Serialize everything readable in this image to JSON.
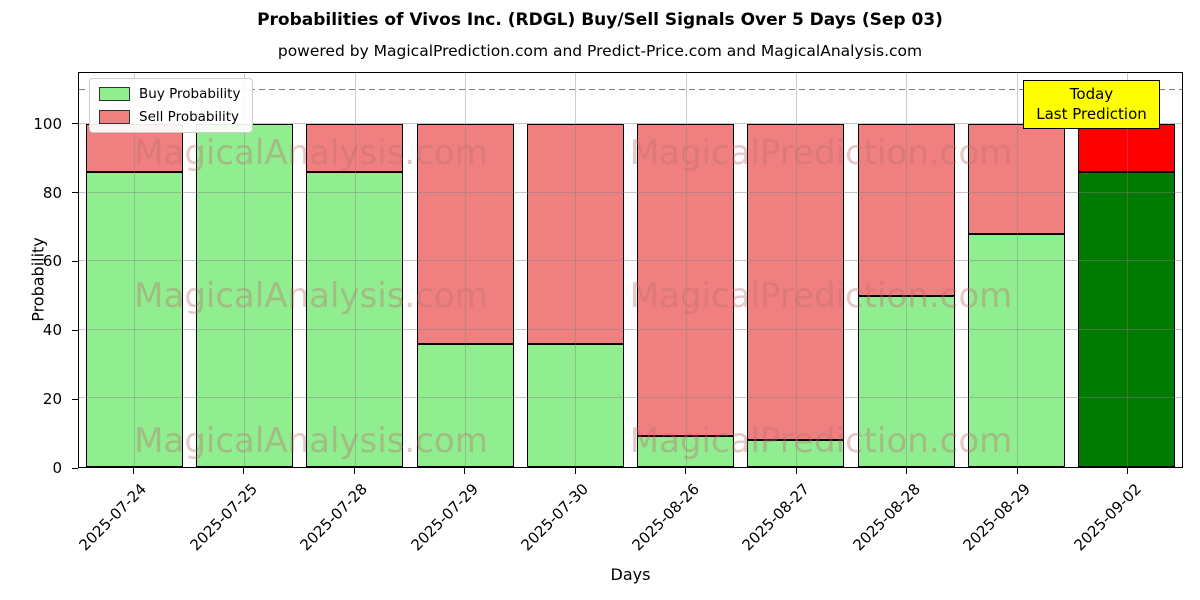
{
  "chart_data": {
    "type": "bar",
    "stacked": true,
    "title": "Probabilities of Vivos Inc. (RDGL) Buy/Sell Signals Over 5 Days (Sep 03)",
    "subtitle": "powered by MagicalPrediction.com and Predict-Price.com and MagicalAnalysis.com",
    "xlabel": "Days",
    "ylabel": "Probability",
    "ylim": [
      0,
      115
    ],
    "yticks": [
      0,
      20,
      40,
      60,
      80,
      100
    ],
    "threshold_line": 110,
    "grid": true,
    "legend_position": "upper-left",
    "categories": [
      "2025-07-24",
      "2025-07-25",
      "2025-07-28",
      "2025-07-29",
      "2025-07-30",
      "2025-08-26",
      "2025-08-27",
      "2025-08-28",
      "2025-08-29",
      "2025-09-02"
    ],
    "series": [
      {
        "name": "Buy Probability",
        "values": [
          86,
          100,
          86,
          36,
          36,
          9,
          8,
          50,
          68,
          86
        ],
        "color": "#90ee90",
        "today_color": "#007a00"
      },
      {
        "name": "Sell Probability",
        "values": [
          14,
          0,
          14,
          64,
          64,
          91,
          92,
          50,
          32,
          14
        ],
        "color": "#f08080",
        "today_color": "#ff0000"
      }
    ],
    "annotation": {
      "line1": "Today",
      "line2": "Last Prediction",
      "bg_color": "#ffff00"
    },
    "watermarks": {
      "left": "MagicalAnalysis.com",
      "right": "MagicalPrediction.com"
    },
    "colors": {
      "edge": "#000000",
      "grid": "#b0b0b0",
      "threshold": "#7f7f7f",
      "legend_border": "#cccccc"
    }
  }
}
